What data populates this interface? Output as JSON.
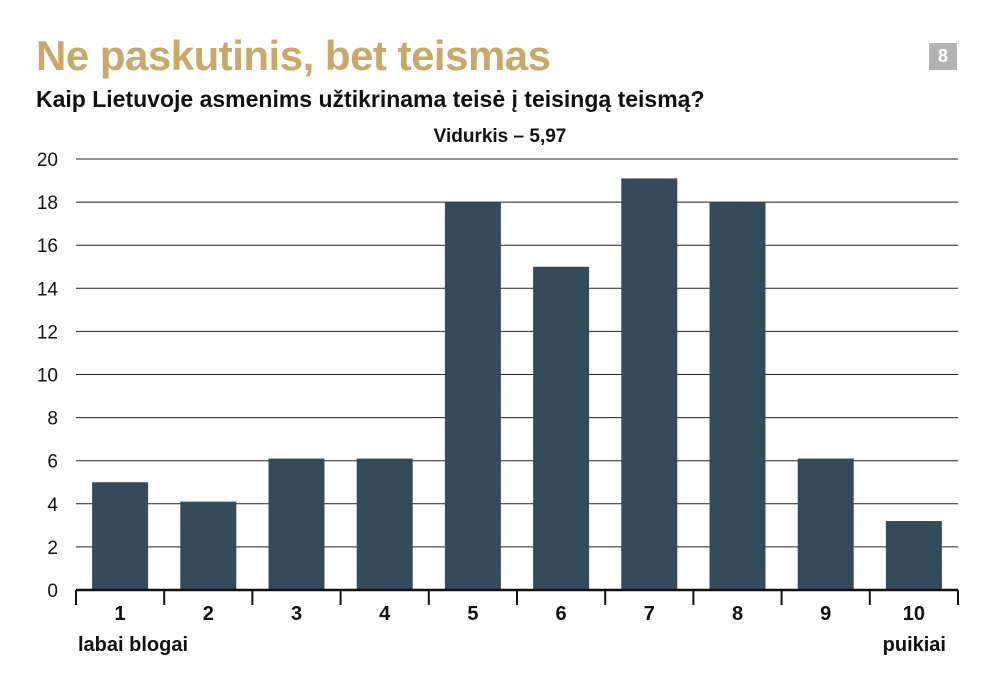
{
  "header": {
    "title": "Ne paskutinis, bet teismas",
    "subtitle": "Kaip Lietuvoje asmenims užtikrinama teisė į teisingą teismą?",
    "badge": "8"
  },
  "colors": {
    "title": "#c9a96a",
    "bar": "#344b5b",
    "badge": "#b3b3b3"
  },
  "chart_data": {
    "type": "bar",
    "annotation": "Vidurkis – 5,97",
    "categories": [
      "1",
      "2",
      "3",
      "4",
      "5",
      "6",
      "7",
      "8",
      "9",
      "10"
    ],
    "values": [
      5,
      4.1,
      6.1,
      6.1,
      18,
      15,
      19.1,
      18,
      6.1,
      3.2
    ],
    "yticks": [
      0,
      2,
      4,
      6,
      8,
      10,
      12,
      14,
      16,
      18,
      20
    ],
    "ylim": [
      0,
      20
    ],
    "grid": true,
    "x_end_labels": {
      "left": "labai blogai",
      "right": "puikiai"
    },
    "title": "",
    "xlabel": "",
    "ylabel": ""
  }
}
